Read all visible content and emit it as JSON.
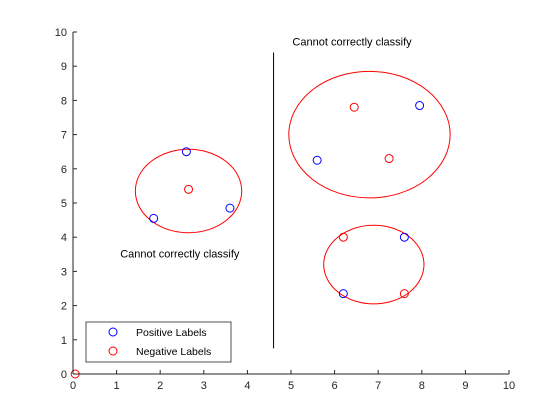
{
  "chart_data": {
    "type": "scatter",
    "title": "",
    "xlabel": "",
    "ylabel": "",
    "xlim": [
      0,
      10
    ],
    "ylim": [
      0,
      10
    ],
    "xticks": [
      "0",
      "1",
      "2",
      "3",
      "4",
      "5",
      "6",
      "7",
      "8",
      "9",
      "10"
    ],
    "yticks": [
      "0",
      "1",
      "2",
      "3",
      "4",
      "5",
      "6",
      "7",
      "8",
      "9",
      "10"
    ],
    "grid": false,
    "legend_position": "bottom-left",
    "series": [
      {
        "name": "Positive Labels",
        "color": "#0000ff",
        "marker": "open-circle",
        "points": [
          [
            2.6,
            6.5
          ],
          [
            1.85,
            4.55
          ],
          [
            3.6,
            4.85
          ],
          [
            5.6,
            6.25
          ],
          [
            7.95,
            7.85
          ],
          [
            7.6,
            4.0
          ],
          [
            6.2,
            2.35
          ]
        ]
      },
      {
        "name": "Negative Labels",
        "color": "#ff0000",
        "marker": "open-circle",
        "points": [
          [
            0.05,
            0.0
          ],
          [
            2.65,
            5.4
          ],
          [
            6.45,
            7.8
          ],
          [
            7.25,
            6.3
          ],
          [
            6.2,
            4.0
          ],
          [
            7.6,
            2.35
          ]
        ]
      }
    ],
    "circles": [
      {
        "cx": 2.65,
        "cy": 5.35,
        "r": 1.22,
        "color": "#ff0000"
      },
      {
        "cx": 6.8,
        "cy": 7.0,
        "r": 1.85,
        "color": "#ff0000"
      },
      {
        "cx": 6.9,
        "cy": 3.2,
        "r": 1.15,
        "color": "#ff0000"
      }
    ],
    "separator_line": {
      "x": 4.6,
      "y_from": 0.75,
      "y_to": 9.4,
      "color": "#000000"
    },
    "annotations": [
      {
        "text": "Cannot correctly classify",
        "x": 6.4,
        "y": 9.6
      },
      {
        "text": "Cannot correctly classify",
        "x": 2.45,
        "y": 3.4
      }
    ]
  }
}
